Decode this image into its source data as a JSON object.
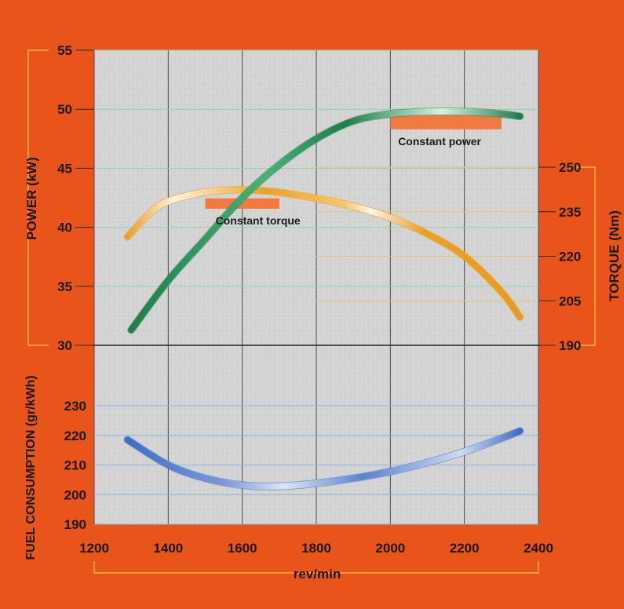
{
  "chart_data": {
    "type": "line",
    "x": {
      "label": "rev/min",
      "range": [
        1200,
        2400
      ],
      "ticks": [
        1200,
        1400,
        1600,
        1800,
        2000,
        2200,
        2400
      ]
    },
    "axes": {
      "power": {
        "label": "POWER (kW)",
        "range": [
          30,
          55
        ],
        "ticks": [
          30,
          35,
          40,
          45,
          50,
          55
        ]
      },
      "torque": {
        "label": "TORQUE (Nm)",
        "range": [
          190,
          250
        ],
        "ticks": [
          190,
          205,
          220,
          235,
          250
        ]
      },
      "fuel": {
        "label": "FUEL CONSUMPTION (gr/kWh)",
        "range": [
          190,
          230
        ],
        "ticks": [
          190,
          200,
          210,
          220,
          230
        ]
      }
    },
    "series": [
      {
        "axis": "power",
        "color": "#2a8a55",
        "points": [
          [
            1300,
            31.3
          ],
          [
            1400,
            35.5
          ],
          [
            1500,
            39.0
          ],
          [
            1600,
            42.5
          ],
          [
            1700,
            45.3
          ],
          [
            1800,
            47.5
          ],
          [
            1900,
            49.0
          ],
          [
            2000,
            49.6
          ],
          [
            2100,
            49.8
          ],
          [
            2200,
            49.8
          ],
          [
            2300,
            49.6
          ],
          [
            2350,
            49.4
          ]
        ]
      },
      {
        "axis": "torque",
        "color": "#f0a020",
        "points": [
          [
            1290,
            226.5
          ],
          [
            1350,
            234.5
          ],
          [
            1400,
            238.5
          ],
          [
            1500,
            241.6
          ],
          [
            1600,
            242.4
          ],
          [
            1700,
            241.5
          ],
          [
            1800,
            239.5
          ],
          [
            1900,
            236.8
          ],
          [
            2000,
            233.0
          ],
          [
            2100,
            227.5
          ],
          [
            2200,
            220.0
          ],
          [
            2300,
            208.0
          ],
          [
            2350,
            199.5
          ]
        ]
      },
      {
        "axis": "fuel",
        "color": "#4a78c8",
        "points": [
          [
            1290,
            218.5
          ],
          [
            1400,
            210.0
          ],
          [
            1500,
            205.5
          ],
          [
            1600,
            203.2
          ],
          [
            1700,
            202.8
          ],
          [
            1800,
            203.8
          ],
          [
            1900,
            205.5
          ],
          [
            2000,
            207.8
          ],
          [
            2100,
            210.8
          ],
          [
            2200,
            214.5
          ],
          [
            2300,
            219.0
          ],
          [
            2350,
            221.5
          ]
        ]
      }
    ],
    "annotations": [
      {
        "text": "Constant torque",
        "axis": "torque",
        "x_range": [
          1500,
          1700
        ],
        "y_range": [
          236,
          239.5
        ],
        "color": "#f07a40"
      },
      {
        "text": "Constant power",
        "axis": "power",
        "x_range": [
          2000,
          2300
        ],
        "y_range": [
          48.3,
          49.5
        ],
        "color": "#f07a40"
      }
    ],
    "grid": true
  }
}
